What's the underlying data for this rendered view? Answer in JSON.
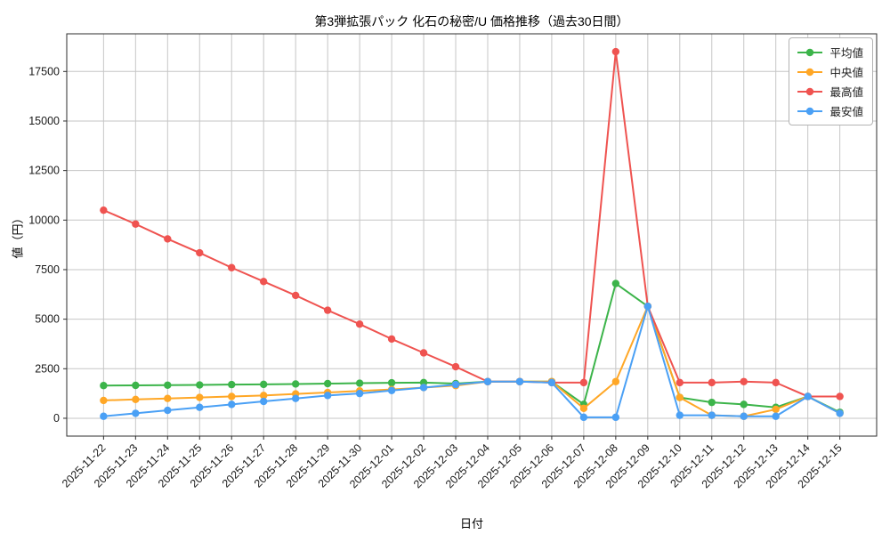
{
  "title": "第3弾拡張パック 化石の秘密/U 価格推移（過去30日間）",
  "chart_data": {
    "type": "line",
    "title": "第3弾拡張パック 化石の秘密/U 価格推移（過去30日間）",
    "xlabel": "日付",
    "ylabel": "値（円）",
    "grid": true,
    "legend_position": "upper right",
    "yticks": [
      0,
      2500,
      5000,
      7500,
      10000,
      12500,
      15000,
      17500
    ],
    "ylim": [
      -900,
      19400
    ],
    "x": [
      "2025-11-22",
      "2025-11-23",
      "2025-11-24",
      "2025-11-25",
      "2025-11-26",
      "2025-11-27",
      "2025-11-28",
      "2025-11-29",
      "2025-11-30",
      "2025-12-01",
      "2025-12-02",
      "2025-12-03",
      "2025-12-04",
      "2025-12-05",
      "2025-12-06",
      "2025-12-07",
      "2025-12-08",
      "2025-12-09",
      "2025-12-10",
      "2025-12-11",
      "2025-12-12",
      "2025-12-13",
      "2025-12-14",
      "2025-12-15"
    ],
    "series": [
      {
        "name": "平均値",
        "color": "#3cb44a",
        "values": [
          1650,
          1660,
          1670,
          1680,
          1700,
          1710,
          1730,
          1750,
          1770,
          1790,
          1800,
          1750,
          1850,
          1850,
          1850,
          700,
          6800,
          5650,
          1050,
          800,
          700,
          550,
          1100,
          300
        ]
      },
      {
        "name": "中央値",
        "color": "#ffa726",
        "values": [
          900,
          950,
          1000,
          1050,
          1100,
          1150,
          1230,
          1300,
          1380,
          1450,
          1550,
          1650,
          1850,
          1850,
          1850,
          500,
          1850,
          5650,
          1050,
          150,
          100,
          450,
          1100,
          250
        ]
      },
      {
        "name": "最高値",
        "color": "#ef5350",
        "values": [
          10500,
          9800,
          9050,
          8350,
          7600,
          6900,
          6200,
          5450,
          4750,
          4000,
          3300,
          2600,
          1850,
          1850,
          1800,
          1800,
          18500,
          5650,
          1800,
          1800,
          1850,
          1800,
          1100,
          1100
        ]
      },
      {
        "name": "最安値",
        "color": "#4aa0f5",
        "values": [
          100,
          250,
          400,
          550,
          700,
          850,
          1000,
          1150,
          1250,
          1400,
          1550,
          1700,
          1850,
          1850,
          1800,
          50,
          50,
          5650,
          150,
          150,
          100,
          100,
          1100,
          250
        ]
      }
    ]
  }
}
